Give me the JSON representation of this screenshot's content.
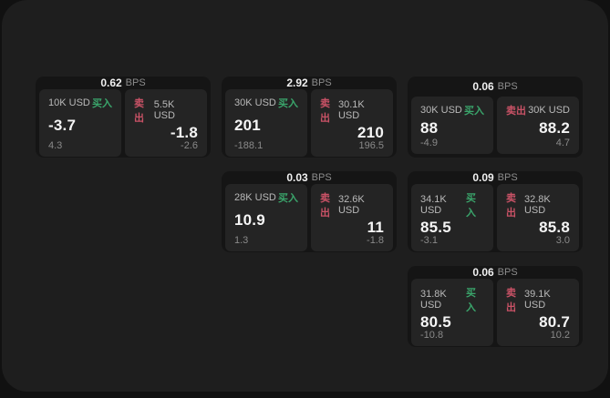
{
  "labels": {
    "bps_unit": "BPS",
    "buy": "买入",
    "sell": "卖出"
  },
  "colors": {
    "buy_green": "#3aa56b",
    "sell_red": "#c95266",
    "panel_bg": "#1e1e1e",
    "card_bg": "#151515",
    "subcard_bg": "#242424"
  },
  "cards": [
    {
      "bps": "0.62",
      "buy": {
        "amount": "10K USD",
        "value": "-3.7",
        "delta": "4.3"
      },
      "sell": {
        "amount": "5.5K USD",
        "value": "-1.8",
        "delta": "-2.6"
      }
    },
    {
      "bps": "2.92",
      "buy": {
        "amount": "30K USD",
        "value": "201",
        "delta": "-188.1"
      },
      "sell": {
        "amount": "30.1K USD",
        "value": "210",
        "delta": "196.5"
      }
    },
    {
      "bps": "0.06",
      "buy": {
        "amount": "30K USD",
        "value": "88",
        "delta": "-4.9"
      },
      "sell": {
        "amount": "30K USD",
        "value": "88.2",
        "delta": "4.7"
      }
    },
    {
      "bps": "0.03",
      "buy": {
        "amount": "28K USD",
        "value": "10.9",
        "delta": "1.3"
      },
      "sell": {
        "amount": "32.6K USD",
        "value": "11",
        "delta": "-1.8"
      }
    },
    {
      "bps": "0.09",
      "buy": {
        "amount": "34.1K USD",
        "value": "85.5",
        "delta": "-3.1"
      },
      "sell": {
        "amount": "32.8K USD",
        "value": "85.8",
        "delta": "3.0"
      }
    },
    {
      "bps": "0.06",
      "buy": {
        "amount": "31.8K USD",
        "value": "80.5",
        "delta": "-10.8"
      },
      "sell": {
        "amount": "39.1K USD",
        "value": "80.7",
        "delta": "10.2"
      }
    }
  ]
}
